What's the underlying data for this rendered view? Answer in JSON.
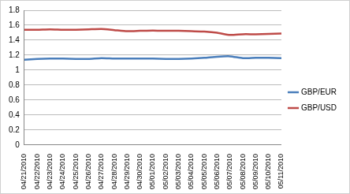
{
  "chart_data": {
    "type": "line",
    "categories": [
      "04/21/2010",
      "04/22/2010",
      "04/23/2010",
      "04/24/2010",
      "04/25/2010",
      "04/26/2010",
      "04/27/2010",
      "04/28/2010",
      "04/29/2010",
      "04/30/2010",
      "05/01/2010",
      "05/02/2010",
      "05/03/2010",
      "05/04/2010",
      "05/05/2010",
      "05/06/2010",
      "05/07/2010",
      "05/08/2010",
      "05/09/2010",
      "05/10/2010",
      "05/11/2010"
    ],
    "series": [
      {
        "name": "GBP/EUR",
        "color": "#4a7ebb",
        "values": [
          1.14,
          1.15,
          1.155,
          1.155,
          1.15,
          1.15,
          1.16,
          1.155,
          1.155,
          1.155,
          1.155,
          1.15,
          1.15,
          1.155,
          1.165,
          1.18,
          1.185,
          1.16,
          1.165,
          1.165,
          1.16
        ]
      },
      {
        "name": "GBP/USD",
        "color": "#be4b48",
        "values": [
          1.54,
          1.54,
          1.545,
          1.54,
          1.54,
          1.545,
          1.55,
          1.535,
          1.52,
          1.525,
          1.53,
          1.525,
          1.525,
          1.52,
          1.515,
          1.5,
          1.47,
          1.48,
          1.48,
          1.485,
          1.49
        ]
      }
    ],
    "ylim": [
      0,
      1.8
    ],
    "yticks": [
      0,
      0.2,
      0.4,
      0.6,
      0.8,
      1,
      1.2,
      1.4,
      1.6,
      1.8
    ],
    "grid": true,
    "legend": "right"
  }
}
